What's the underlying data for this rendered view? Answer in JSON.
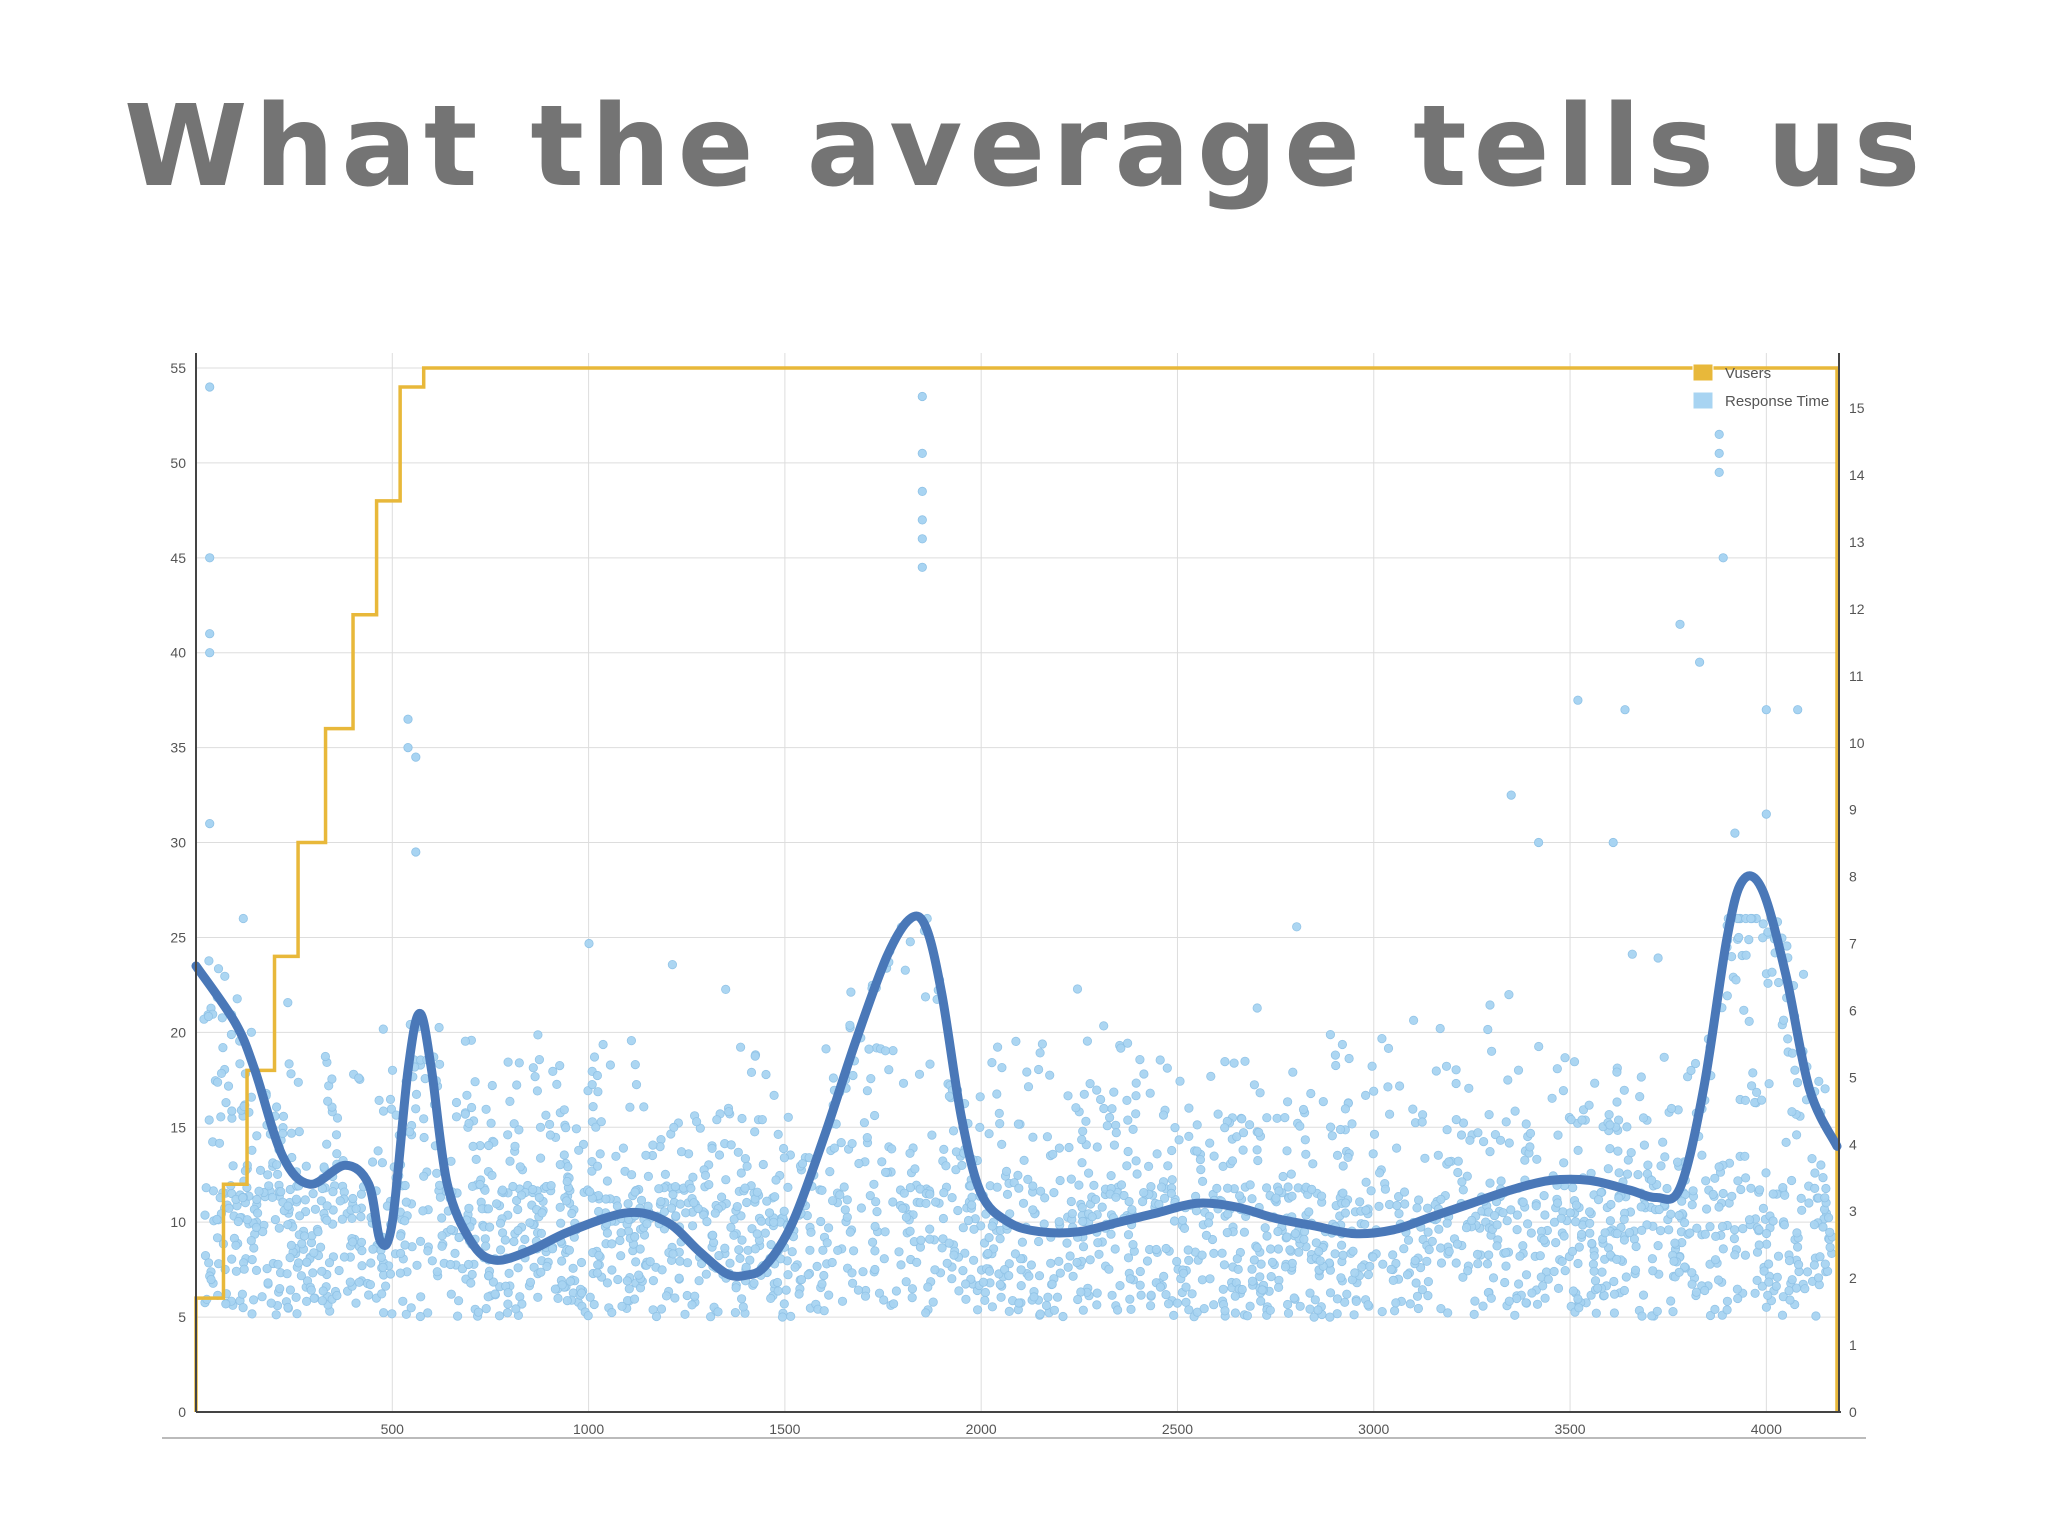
{
  "slide": {
    "title": "What the average tells us"
  },
  "colors": {
    "title": "#747474",
    "vusers": "#e8b83a",
    "response_time_points": "#a8d4f2",
    "average_line": "#4a78b8",
    "grid": "#dddddd",
    "axis": "#444444"
  },
  "chart_data": {
    "type": "line",
    "title": "",
    "xlabel": "",
    "ylabel": "",
    "xlim": [
      0,
      4180
    ],
    "ylim_left": [
      0,
      55
    ],
    "ylim_right": [
      0,
      15.6
    ],
    "grid": true,
    "legend_position": "top-right",
    "x_ticks": [
      "500",
      "1000",
      "1500",
      "2000",
      "2500",
      "3000",
      "3500",
      "4000"
    ],
    "y_left_ticks": [
      "0",
      "5",
      "10",
      "15",
      "20",
      "25",
      "30",
      "35",
      "40",
      "45",
      "50",
      "55"
    ],
    "y_right_ticks": [
      "0",
      "1",
      "2",
      "3",
      "4",
      "5",
      "6",
      "7",
      "8",
      "9",
      "10",
      "11",
      "12",
      "13",
      "14",
      "15"
    ],
    "legend": [
      {
        "label": "Vusers",
        "color": "#e8b83a"
      },
      {
        "label": "Response Time",
        "color": "#a8d4f2"
      }
    ],
    "series": [
      {
        "name": "Vusers",
        "type": "step",
        "axis": "left",
        "x": [
          0,
          70,
          130,
          200,
          260,
          330,
          400,
          460,
          520,
          580,
          4180
        ],
        "y": [
          6,
          12,
          18,
          24,
          30,
          36,
          42,
          48,
          54,
          55,
          55
        ]
      },
      {
        "name": "Response Time",
        "type": "scatter",
        "axis": "left",
        "note_outliers_x": [
          35,
          35,
          35,
          35,
          35,
          540,
          540,
          560,
          560,
          1850,
          1850,
          1850,
          1850,
          1850,
          1850,
          3350,
          3420,
          3520,
          3610,
          3640,
          3780,
          3830,
          3880,
          3880,
          3880,
          3890,
          3920,
          4000,
          4000,
          4080
        ],
        "note_outliers_y": [
          54,
          45,
          41,
          40,
          31,
          36.5,
          35,
          34.5,
          29.5,
          53.5,
          50.5,
          48.5,
          47,
          46,
          44.5,
          32.5,
          30,
          37.5,
          30,
          37,
          41.5,
          39.5,
          51.5,
          50.5,
          49.5,
          45,
          30.5,
          37,
          31.5,
          37
        ]
      },
      {
        "name": "Average",
        "type": "line",
        "axis": "left",
        "x": [
          0,
          100,
          150,
          220,
          290,
          380,
          440,
          470,
          500,
          540,
          570,
          600,
          640,
          700,
          760,
          850,
          950,
          1100,
          1200,
          1280,
          1350,
          1400,
          1450,
          1520,
          1600,
          1680,
          1760,
          1820,
          1860,
          1900,
          1950,
          2000,
          2070,
          2150,
          2250,
          2350,
          2450,
          2550,
          2650,
          2750,
          2850,
          2950,
          3050,
          3150,
          3250,
          3350,
          3450,
          3550,
          3650,
          3720,
          3780,
          3840,
          3900,
          3940,
          3990,
          4050,
          4110,
          4180
        ],
        "y": [
          23.5,
          20.5,
          18,
          13.5,
          12,
          13,
          12,
          9,
          10,
          18,
          21,
          18,
          12,
          9,
          8,
          8.5,
          9.5,
          10.5,
          10,
          8.5,
          7.3,
          7.2,
          7.7,
          10,
          14.5,
          19.5,
          24,
          26,
          25.5,
          22,
          15.5,
          11.5,
          10,
          9.5,
          9.5,
          10,
          10.5,
          11,
          10.8,
          10.2,
          9.8,
          9.4,
          9.6,
          10.3,
          11,
          11.7,
          12.2,
          12.2,
          11.7,
          11.3,
          11.8,
          17,
          25,
          28,
          27.5,
          23,
          17,
          14
        ]
      }
    ]
  }
}
